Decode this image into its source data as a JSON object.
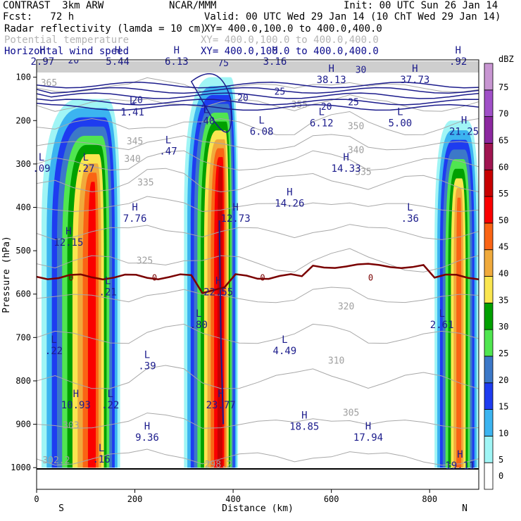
{
  "header": {
    "project": "CONTRAST  3km ARW",
    "center": "NCAR/MMM",
    "init": "Init: 00 UTC Sun 26 Jan 14",
    "fcst": "Fcst:   72 h",
    "valid": "Valid: 00 UTC Wed 29 Jan 14 (10 ChT Wed 29 Jan 14)",
    "field1": "Radar reflectivity (lamda = 10 cm)",
    "field1_xy": "XY= 400.0,100.0 to 400.0,400.0",
    "field2": "Potential temperature",
    "field2_xy": "XY= 400.0,100.0 to 400.0,400.0",
    "field3": "Horizontal wind speed",
    "field3_xy": "XY= 400.0,100.0 to 400.0,400.0"
  },
  "chart_data": {
    "type": "cross-section",
    "title": "Radar reflectivity, potential temperature and horizontal wind speed cross-section",
    "xlabel": "Distance (km)",
    "ylabel": "Pressure (hPa)",
    "xlim": [
      0,
      900
    ],
    "ylim_pressure": [
      1050,
      60
    ],
    "x_ticks": [
      0,
      200,
      400,
      600,
      800
    ],
    "y_ticks": [
      100,
      200,
      300,
      400,
      500,
      600,
      700,
      800,
      900,
      1000
    ],
    "x_end_labels": {
      "left": "S",
      "right": "N"
    },
    "colorbar": {
      "unit": "dBZ",
      "levels": [
        0,
        5,
        10,
        15,
        20,
        25,
        30,
        35,
        40,
        45,
        50,
        55,
        60,
        65,
        70,
        75
      ],
      "colors": [
        "#ffffff",
        "#a0f5f5",
        "#3cb4f0",
        "#1e3cf0",
        "#3c78c8",
        "#50e650",
        "#00a000",
        "#fae650",
        "#f0aa3c",
        "#fa6414",
        "#fa0000",
        "#c80000",
        "#a01450",
        "#8c28a0",
        "#a050c8",
        "#c896d2"
      ]
    },
    "reflectivity_columns": [
      {
        "x_range": [
          10,
          170
        ],
        "core_x": 115,
        "top_hpa": 150,
        "bottom_hpa": 1000,
        "max_dbz": 50
      },
      {
        "x_range": [
          300,
          410
        ],
        "core_x": 375,
        "top_hpa": 100,
        "bottom_hpa": 1000,
        "max_dbz": 55
      },
      {
        "x_range": [
          810,
          900
        ],
        "core_x": 860,
        "top_hpa": 200,
        "bottom_hpa": 1000,
        "max_dbz": 45
      }
    ],
    "theta_contours": [
      {
        "label": "365",
        "x": 25,
        "p": 120
      },
      {
        "label": "355",
        "x": 535,
        "p": 170
      },
      {
        "label": "350",
        "x": 650,
        "p": 220
      },
      {
        "label": "345",
        "x": 200,
        "p": 255
      },
      {
        "label": "340",
        "x": 195,
        "p": 295
      },
      {
        "label": "340",
        "x": 650,
        "p": 275
      },
      {
        "label": "335",
        "x": 222,
        "p": 350
      },
      {
        "label": "335",
        "x": 665,
        "p": 325
      },
      {
        "label": "325",
        "x": 220,
        "p": 530
      },
      {
        "label": "320",
        "x": 630,
        "p": 635
      },
      {
        "label": "310",
        "x": 610,
        "p": 760
      },
      {
        "label": "305",
        "x": 640,
        "p": 880
      },
      {
        "label": "303",
        "x": 70,
        "p": 910
      },
      {
        "label": "302.2",
        "x": 40,
        "p": 990
      },
      {
        "label": "298.2",
        "x": 370,
        "p": 1000
      }
    ],
    "wind_contours": [
      {
        "label": "20",
        "x": 75,
        "p": 68
      },
      {
        "label": "20",
        "x": 205,
        "p": 160
      },
      {
        "label": "20",
        "x": 420,
        "p": 155
      },
      {
        "label": "25",
        "x": 495,
        "p": 140
      },
      {
        "label": "20",
        "x": 590,
        "p": 175
      },
      {
        "label": "25",
        "x": 645,
        "p": 165
      },
      {
        "label": "30",
        "x": 660,
        "p": 90
      },
      {
        "label": "75",
        "x": 380,
        "p": 75
      }
    ],
    "zero_isotherm_label": "0",
    "extrema": [
      {
        "type": "H",
        "value": "2.97",
        "x": 12,
        "p": 68
      },
      {
        "type": "H",
        "value": "5.44",
        "x": 165,
        "p": 68
      },
      {
        "type": "H",
        "value": "6.13",
        "x": 285,
        "p": 68
      },
      {
        "type": "H",
        "value": "3.16",
        "x": 485,
        "p": 68
      },
      {
        "type": "H",
        "value": ".92",
        "x": 858,
        "p": 68
      },
      {
        "type": "H",
        "value": "38.13",
        "x": 600,
        "p": 110
      },
      {
        "type": "H",
        "value": "37.73",
        "x": 770,
        "p": 110
      },
      {
        "type": "L",
        "value": "1.41",
        "x": 195,
        "p": 185
      },
      {
        "type": "L",
        "value": ".40",
        "x": 345,
        "p": 205
      },
      {
        "type": "L",
        "value": "6.08",
        "x": 458,
        "p": 230
      },
      {
        "type": "L",
        "value": "6.12",
        "x": 580,
        "p": 210
      },
      {
        "type": "L",
        "value": "5.00",
        "x": 740,
        "p": 210
      },
      {
        "type": "H",
        "value": "21.25",
        "x": 870,
        "p": 230
      },
      {
        "type": "L",
        "value": ".47",
        "x": 268,
        "p": 275
      },
      {
        "type": "L",
        "value": ".09",
        "x": 10,
        "p": 315
      },
      {
        "type": "L",
        "value": ".27",
        "x": 100,
        "p": 315
      },
      {
        "type": "H",
        "value": "14.26",
        "x": 515,
        "p": 395
      },
      {
        "type": "H",
        "value": "14.33",
        "x": 630,
        "p": 315
      },
      {
        "type": "H",
        "value": "7.76",
        "x": 200,
        "p": 430
      },
      {
        "type": "H",
        "value": "12.73",
        "x": 405,
        "p": 430
      },
      {
        "type": "L",
        "value": ".36",
        "x": 760,
        "p": 430
      },
      {
        "type": "H",
        "value": "12.15",
        "x": 65,
        "p": 485
      },
      {
        "type": "L",
        "value": ".21",
        "x": 145,
        "p": 600
      },
      {
        "type": "H",
        "value": "22.55",
        "x": 370,
        "p": 600
      },
      {
        "type": "L",
        "value": ".80",
        "x": 330,
        "p": 675
      },
      {
        "type": "L",
        "value": "2.61",
        "x": 825,
        "p": 675
      },
      {
        "type": "L",
        "value": ".22",
        "x": 35,
        "p": 735
      },
      {
        "type": "L",
        "value": "4.49",
        "x": 505,
        "p": 735
      },
      {
        "type": "L",
        "value": ".39",
        "x": 225,
        "p": 770
      },
      {
        "type": "H",
        "value": "10.93",
        "x": 80,
        "p": 860
      },
      {
        "type": "L",
        "value": ".22",
        "x": 150,
        "p": 860
      },
      {
        "type": "H",
        "value": "23.77",
        "x": 375,
        "p": 860
      },
      {
        "type": "H",
        "value": "18.85",
        "x": 545,
        "p": 910
      },
      {
        "type": "H",
        "value": "9.36",
        "x": 225,
        "p": 935
      },
      {
        "type": "H",
        "value": "17.94",
        "x": 675,
        "p": 935
      },
      {
        "type": "L",
        "value": ".16",
        "x": 132,
        "p": 985
      },
      {
        "type": "H",
        "value": "19.11",
        "x": 862,
        "p": 1000
      }
    ]
  }
}
